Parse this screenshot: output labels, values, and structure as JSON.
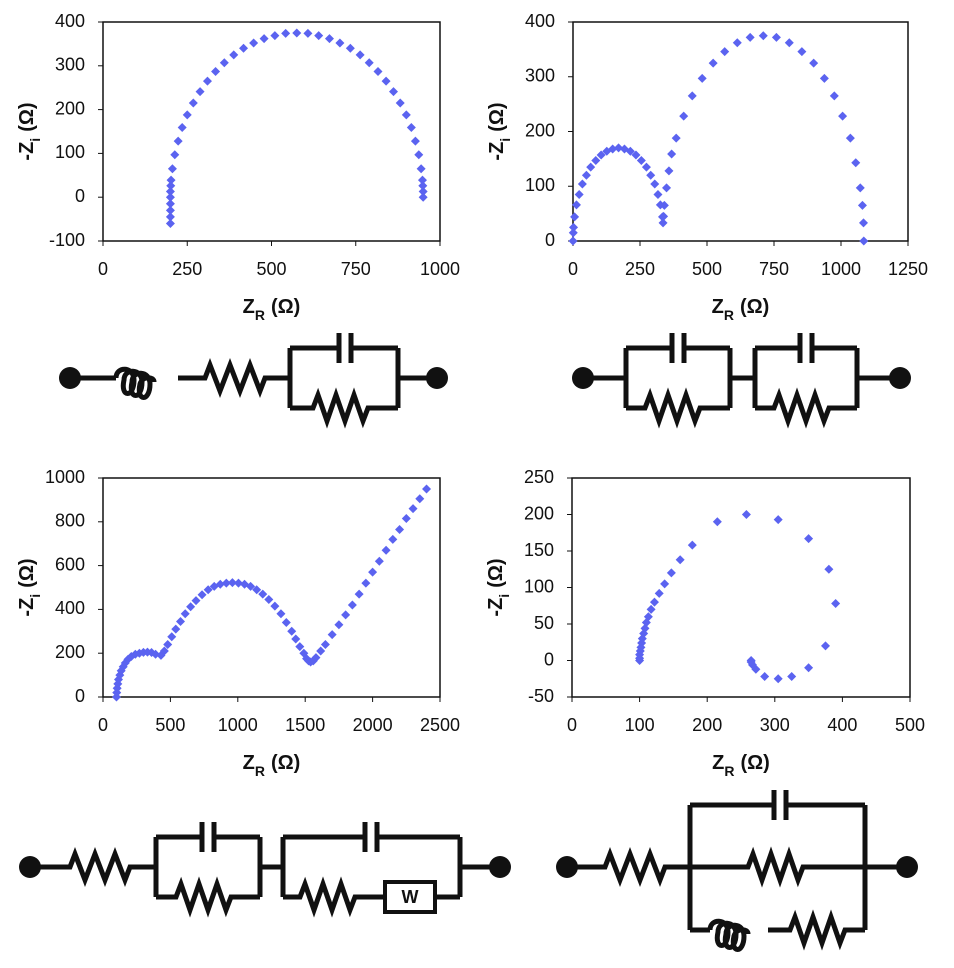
{
  "chart_data": [
    {
      "type": "scatter",
      "color": "#5b63f0",
      "x": [
        950,
        950,
        949,
        948,
        944,
        937,
        927,
        915,
        900,
        882,
        862,
        840,
        816,
        790,
        763,
        734,
        703,
        672,
        640,
        608,
        575,
        542,
        510,
        478,
        447,
        417,
        388,
        360,
        334,
        310,
        288,
        268,
        250,
        235,
        223,
        213,
        206,
        202,
        201,
        200,
        200,
        200,
        200,
        200,
        200
      ],
      "values": [
        0,
        13,
        26,
        39,
        65,
        97,
        128,
        159,
        188,
        215,
        241,
        265,
        287,
        307,
        325,
        340,
        352,
        362,
        369,
        374,
        375,
        374,
        369,
        362,
        352,
        340,
        325,
        307,
        287,
        265,
        241,
        215,
        188,
        159,
        128,
        97,
        65,
        39,
        26,
        13,
        0,
        -15,
        -30,
        -45,
        -60
      ],
      "xlim": [
        0,
        1000
      ],
      "ylim": [
        -100,
        400
      ],
      "xticks": [
        0,
        250,
        500,
        750,
        1000
      ],
      "yticks": [
        -100,
        0,
        100,
        200,
        300,
        400
      ],
      "xlabel": [
        "Z",
        "R",
        "(Ω)"
      ],
      "ylabel": [
        "-Z",
        "i",
        "(Ω)"
      ]
    },
    {
      "type": "scatter",
      "color": "#5b63f0",
      "x": [
        1085,
        1084,
        1080,
        1072,
        1055,
        1035,
        1006,
        975,
        938,
        898,
        854,
        807,
        759,
        710,
        661,
        613,
        566,
        523,
        482,
        445,
        413,
        385,
        368,
        358,
        349,
        341,
        338,
        336,
        334,
        326,
        317,
        305,
        290,
        274,
        255,
        235,
        214,
        192,
        170,
        148,
        126,
        105,
        85,
        66,
        50,
        35,
        23,
        13,
        6,
        2,
        1,
        0
      ],
      "values": [
        0,
        33,
        65,
        97,
        143,
        188,
        228,
        265,
        297,
        325,
        346,
        362,
        372,
        375,
        372,
        362,
        346,
        325,
        297,
        265,
        228,
        188,
        159,
        128,
        97,
        65,
        45,
        33,
        44,
        66,
        85,
        104,
        120,
        135,
        147,
        157,
        164,
        168,
        170,
        168,
        164,
        157,
        147,
        135,
        120,
        104,
        85,
        66,
        44,
        25,
        15,
        0
      ],
      "xlim": [
        0,
        1250
      ],
      "ylim": [
        0,
        400
      ],
      "xticks": [
        0,
        250,
        500,
        750,
        1000,
        1250
      ],
      "yticks": [
        0,
        100,
        200,
        300,
        400
      ],
      "xlabel": [
        "Z",
        "R",
        "(Ω)"
      ],
      "ylabel": [
        "-Z",
        "i",
        "(Ω)"
      ]
    },
    {
      "type": "scatter",
      "color": "#5b63f0",
      "x": [
        100,
        102,
        105,
        110,
        115,
        125,
        135,
        150,
        165,
        185,
        210,
        240,
        270,
        300,
        330,
        360,
        390,
        430,
        455,
        480,
        510,
        540,
        575,
        610,
        650,
        690,
        735,
        780,
        825,
        870,
        915,
        960,
        1005,
        1050,
        1095,
        1140,
        1185,
        1230,
        1275,
        1320,
        1360,
        1400,
        1430,
        1460,
        1490,
        1510,
        1525,
        1540,
        1560,
        1580,
        1615,
        1650,
        1700,
        1750,
        1800,
        1850,
        1900,
        1950,
        2000,
        2050,
        2100,
        2150,
        2200,
        2250,
        2300,
        2350,
        2400
      ],
      "values": [
        0,
        20,
        40,
        60,
        80,
        100,
        120,
        138,
        155,
        172,
        185,
        195,
        200,
        204,
        205,
        203,
        195,
        190,
        210,
        240,
        275,
        310,
        345,
        380,
        412,
        440,
        467,
        490,
        505,
        515,
        520,
        522,
        520,
        515,
        505,
        490,
        470,
        445,
        415,
        380,
        340,
        300,
        265,
        230,
        200,
        175,
        165,
        160,
        165,
        180,
        210,
        240,
        285,
        330,
        375,
        420,
        470,
        520,
        570,
        620,
        670,
        720,
        765,
        815,
        860,
        905,
        950
      ],
      "xlim": [
        0,
        2500
      ],
      "ylim": [
        0,
        1000
      ],
      "xticks": [
        0,
        500,
        1000,
        1500,
        2000,
        2500
      ],
      "yticks": [
        0,
        200,
        400,
        600,
        800,
        1000
      ],
      "xlabel": [
        "Z",
        "R",
        "(Ω)"
      ],
      "ylabel": [
        "-Z",
        "i",
        "(Ω)"
      ]
    },
    {
      "type": "scatter",
      "color": "#5b63f0",
      "x": [
        100,
        100,
        100,
        101,
        102,
        103,
        104,
        106,
        108,
        110,
        113,
        117,
        122,
        129,
        137,
        147,
        160,
        178,
        215,
        258,
        305,
        350,
        380,
        390,
        375,
        350,
        325,
        305,
        285,
        272,
        267,
        265,
        265
      ],
      "values": [
        0,
        3,
        8,
        13,
        18,
        24,
        30,
        37,
        44,
        52,
        60,
        70,
        80,
        92,
        105,
        120,
        138,
        158,
        190,
        200,
        193,
        167,
        125,
        78,
        20,
        -10,
        -22,
        -25,
        -22,
        -12,
        -6,
        -2,
        0
      ],
      "xlim": [
        0,
        500
      ],
      "ylim": [
        -50,
        250
      ],
      "xticks": [
        0,
        100,
        200,
        300,
        400,
        500
      ],
      "yticks": [
        -50,
        0,
        50,
        100,
        150,
        200,
        250
      ],
      "xlabel": [
        "Z",
        "R",
        "(Ω)"
      ],
      "ylabel": [
        "-Z",
        "i",
        "(Ω)"
      ]
    }
  ],
  "diagram": {
    "warburg_label": "W"
  }
}
